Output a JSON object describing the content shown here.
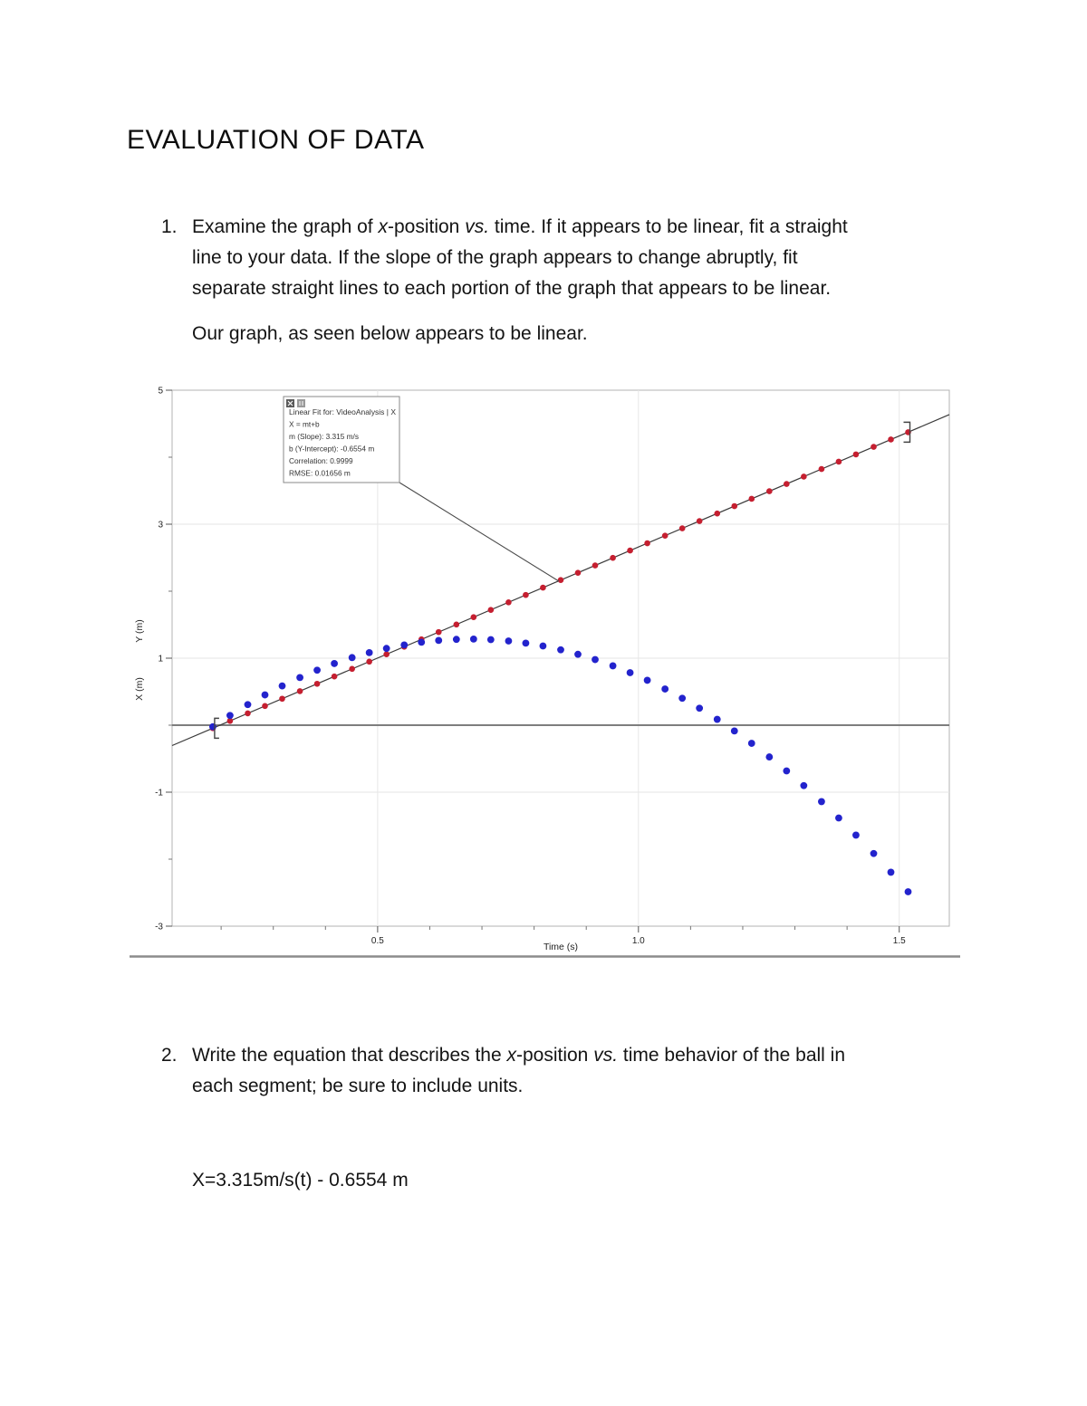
{
  "document": {
    "title": "EVALUATION OF DATA"
  },
  "questions": [
    {
      "number": "1.",
      "lines": [
        {
          "a": "Examine the graph of ",
          "b": "x",
          "c": "-position ",
          "d": "vs.",
          "e": " time. If it appears to be linear, fit a straight"
        },
        {
          "a": "line to your data. If the slope of the graph appears to change abruptly, fit"
        },
        {
          "a": "separate straight lines to each portion of the graph that appears to be linear."
        }
      ],
      "followup": "Our graph, as seen below appears to be linear."
    },
    {
      "number": "2.",
      "lines": [
        {
          "a": "Write the equation that describes the ",
          "b": "x",
          "c": "-position ",
          "d": "vs.",
          "e": " time behavior of the ball in"
        },
        {
          "a": "each segment; be sure to include units."
        }
      ]
    }
  ],
  "answer": {
    "equation": "X=3.315m/s(t) - 0.6554 m"
  },
  "chart_data": {
    "type": "scatter",
    "xlabel": "Time (s)",
    "ylabel_red": "X (m)",
    "ylabel_blue": "Y (m)",
    "xlim": [
      0.106,
      1.596
    ],
    "ylim": [
      -3,
      5
    ],
    "x_ticks": [
      {
        "v": 0.5,
        "label": "0.5"
      },
      {
        "v": 1.0,
        "label": "1.0"
      },
      {
        "v": 1.5,
        "label": "1.5"
      }
    ],
    "x_minor_ticks": [
      0.2,
      0.3,
      0.4,
      0.6,
      0.7,
      0.8,
      0.9,
      1.1,
      1.2,
      1.3,
      1.4
    ],
    "y_ticks": [
      {
        "v": 5,
        "label": "5"
      },
      {
        "v": 3,
        "label": "3"
      },
      {
        "v": 1,
        "label": "1"
      },
      {
        "v": -1,
        "label": "-1"
      },
      {
        "v": -3,
        "label": "-3"
      }
    ],
    "y_minor_ticks": [
      4,
      2,
      0,
      -2
    ],
    "x_gridlines": [
      0.5,
      1.0,
      1.5
    ],
    "y_gridlines": [
      3,
      1,
      -1
    ],
    "zero_line": 0,
    "x": [
      0.184,
      0.217,
      0.251,
      0.284,
      0.317,
      0.351,
      0.384,
      0.417,
      0.451,
      0.484,
      0.517,
      0.551,
      0.584,
      0.617,
      0.651,
      0.684,
      0.717,
      0.751,
      0.784,
      0.817,
      0.851,
      0.884,
      0.917,
      0.951,
      0.984,
      1.017,
      1.051,
      1.084,
      1.117,
      1.151,
      1.184,
      1.217,
      1.251,
      1.284,
      1.317,
      1.351,
      1.384,
      1.417,
      1.451,
      1.484,
      1.517
    ],
    "series": [
      {
        "name": "X (m)",
        "color": "#c51f30",
        "marker_radius": 3.3,
        "values": [
          -0.045,
          0.064,
          0.177,
          0.286,
          0.395,
          0.508,
          0.618,
          0.727,
          0.84,
          0.949,
          1.058,
          1.171,
          1.281,
          1.39,
          1.503,
          1.612,
          1.721,
          1.834,
          1.944,
          2.053,
          2.166,
          2.275,
          2.384,
          2.497,
          2.607,
          2.716,
          2.829,
          2.938,
          3.047,
          3.16,
          3.27,
          3.379,
          3.492,
          3.601,
          3.71,
          3.823,
          3.933,
          4.042,
          4.155,
          4.264,
          4.373
        ]
      },
      {
        "name": "Y (m)",
        "color": "#2323cd",
        "marker_radius": 3.9,
        "values": [
          -0.024,
          0.145,
          0.307,
          0.452,
          0.586,
          0.711,
          0.821,
          0.92,
          1.009,
          1.083,
          1.146,
          1.198,
          1.238,
          1.265,
          1.281,
          1.285,
          1.277,
          1.257,
          1.225,
          1.182,
          1.125,
          1.058,
          0.979,
          0.886,
          0.784,
          0.67,
          0.54,
          0.402,
          0.253,
          0.087,
          -0.086,
          -0.271,
          -0.474,
          -0.682,
          -0.902,
          -1.141,
          -1.385,
          -1.641,
          -1.916,
          -2.195,
          -2.486
        ]
      }
    ],
    "fit": {
      "m": 3.315,
      "b": -0.6554,
      "range": [
        0.184,
        1.517
      ],
      "legend_lines": [
        "Linear Fit for: VideoAnalysis | X",
        "X = mt+b",
        "m (Slope): 3.315 m/s",
        "b (Y-Intercept): -0.6554 m",
        "Correlation: 0.9999",
        "RMSE: 0.01656 m"
      ]
    }
  }
}
